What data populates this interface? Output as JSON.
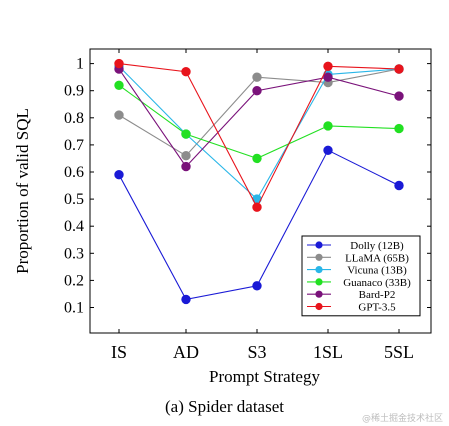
{
  "chart_data": {
    "type": "line",
    "title": "",
    "xlabel": "Prompt Strategy",
    "ylabel": "Proportion of valid SQL",
    "categories": [
      "IS",
      "AD",
      "S3",
      "1SL",
      "5SL"
    ],
    "ylim": [
      0.1,
      1.0
    ],
    "yticks": [
      "0.1",
      "0.2",
      "0.3",
      "0.4",
      "0.5",
      "0.6",
      "0.7",
      "0.8",
      "0.9",
      "1"
    ],
    "grid": false,
    "legend_position": "bottom-right",
    "series": [
      {
        "name": "Dolly (12B)",
        "color": "#1a1ad6",
        "values": [
          0.59,
          0.13,
          0.18,
          0.68,
          0.55
        ]
      },
      {
        "name": "LLaMA (65B)",
        "color": "#8c8c8c",
        "values": [
          0.81,
          0.66,
          0.95,
          0.93,
          0.98
        ]
      },
      {
        "name": "Vicuna (13B)",
        "color": "#29b6e8",
        "values": [
          0.99,
          0.74,
          0.5,
          0.96,
          0.98
        ]
      },
      {
        "name": "Guanaco (33B)",
        "color": "#22e022",
        "values": [
          0.92,
          0.74,
          0.65,
          0.77,
          0.76
        ]
      },
      {
        "name": "Bard-P2",
        "color": "#7a127a",
        "values": [
          0.98,
          0.62,
          0.9,
          0.95,
          0.88
        ]
      },
      {
        "name": "GPT-3.5",
        "color": "#e8141c",
        "values": [
          1.0,
          0.97,
          0.47,
          0.99,
          0.98
        ]
      }
    ]
  },
  "caption": "(a) Spider dataset",
  "watermark": "@稀土掘金技术社区"
}
